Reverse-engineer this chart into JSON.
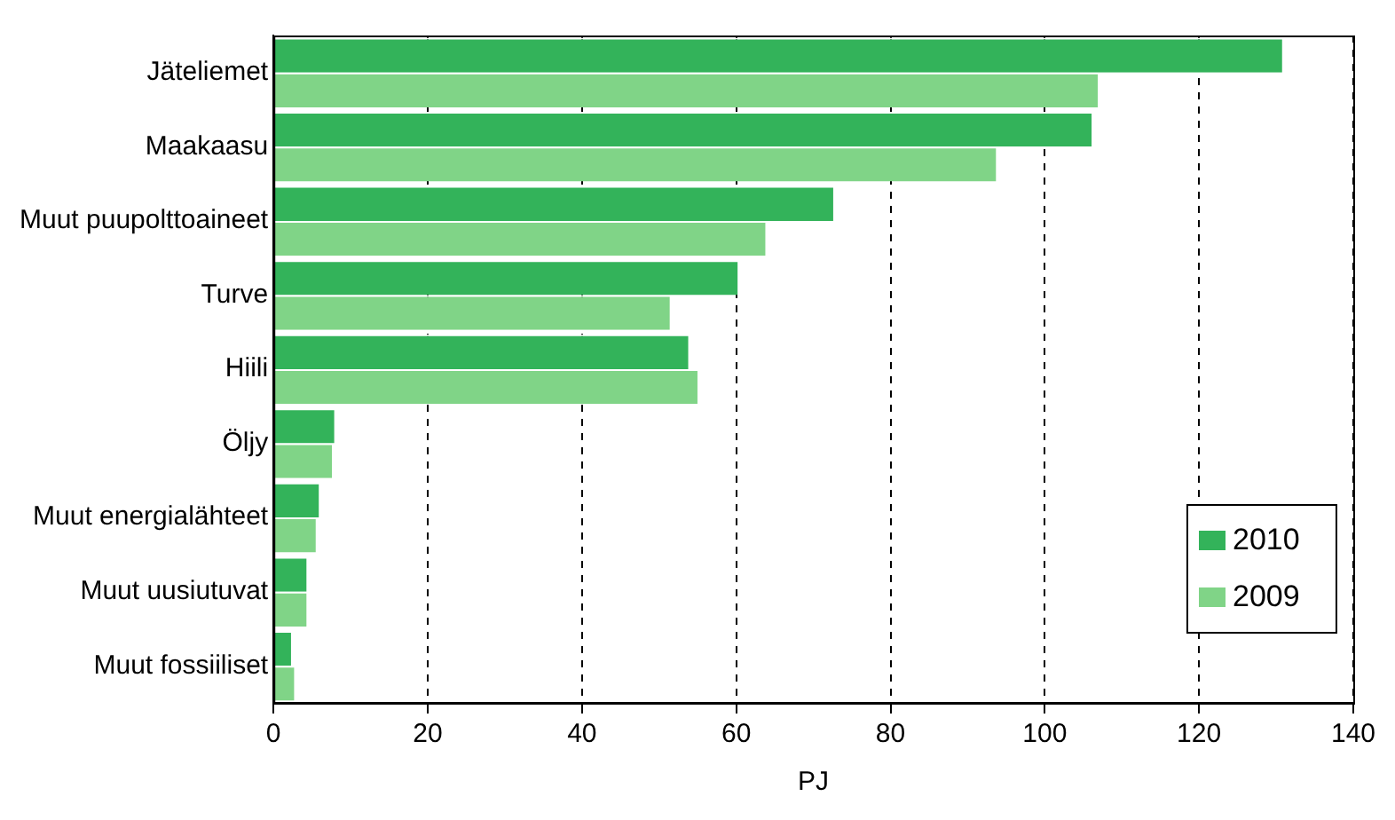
{
  "chart_data": {
    "type": "bar",
    "orientation": "horizontal",
    "xlabel": "PJ",
    "categories": [
      "Jäteliemet",
      "Maakaasu",
      "Muut puupolttoaineet",
      "Turve",
      "Hiili",
      "Öljy",
      "Muut energialähteet",
      "Muut uusiutuvat",
      "Muut fossiiliset"
    ],
    "series": [
      {
        "name": "2010",
        "color": "#33b35a",
        "values": [
          131,
          106.3,
          72.8,
          60.4,
          54,
          8.1,
          6.1,
          4.5,
          2.5
        ]
      },
      {
        "name": "2009",
        "color": "#80d487",
        "values": [
          107.1,
          93.9,
          64,
          51.6,
          55.2,
          7.8,
          5.7,
          4.5,
          2.9
        ]
      }
    ],
    "xlim": [
      0,
      140
    ],
    "xticks": [
      0,
      20,
      40,
      60,
      80,
      100,
      120,
      140
    ],
    "grid": "x",
    "legend": "bottom right"
  }
}
